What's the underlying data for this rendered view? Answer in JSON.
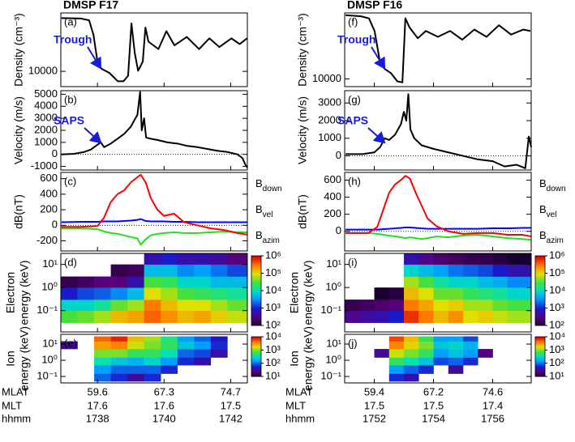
{
  "chart_data": [
    {
      "type": "line",
      "title": "DMSP F17",
      "panel_label": "(a)",
      "ylabel": "Density (cm⁻³)",
      "annotation": "Trough",
      "log_y": true,
      "xlim": [
        1736.9,
        1742.5
      ],
      "ylim": [
        7500,
        30000
      ],
      "yticks": [
        10000
      ],
      "color": "#000000",
      "x": [
        1736.92,
        1737.51,
        1737.75,
        1737.88,
        1738.0,
        1738.12,
        1738.36,
        1738.61,
        1738.78,
        1738.92,
        1739.02,
        1739.12,
        1739.22,
        1739.36,
        1739.44,
        1739.53,
        1739.83,
        1740.07,
        1740.31,
        1740.68,
        1741.05,
        1741.36,
        1741.66,
        1742.02,
        1742.27,
        1742.49
      ],
      "values": [
        27200,
        27000,
        26100,
        19900,
        12000,
        10500,
        9700,
        8300,
        8300,
        9200,
        24600,
        14100,
        10100,
        12000,
        22800,
        17500,
        15200,
        21300,
        16300,
        19100,
        15200,
        18600,
        15800,
        18600,
        16700,
        18600
      ]
    },
    {
      "type": "line",
      "panel_label": "(b)",
      "ylabel": "Velocity (m/s)",
      "annotation": "SAPS",
      "xlim": [
        1736.9,
        1742.5
      ],
      "ylim": [
        -1300,
        5300
      ],
      "yticks": [
        -1000,
        0,
        1000,
        2000,
        3000,
        4000,
        5000
      ],
      "color": "#000000",
      "x": [
        1736.92,
        1737.3,
        1737.6,
        1737.8,
        1738.0,
        1738.1,
        1738.2,
        1738.4,
        1738.6,
        1738.8,
        1739.0,
        1739.1,
        1739.2,
        1739.28,
        1739.33,
        1739.4,
        1739.46,
        1739.6,
        1739.8,
        1740.1,
        1740.4,
        1740.7,
        1741.0,
        1741.3,
        1741.6,
        1741.9,
        1742.2,
        1742.35,
        1742.45,
        1742.5
      ],
      "values": [
        0,
        50,
        200,
        400,
        800,
        1000,
        600,
        900,
        1300,
        1700,
        2300,
        2800,
        3300,
        5200,
        2000,
        3000,
        1400,
        1300,
        1200,
        1000,
        900,
        700,
        600,
        450,
        300,
        200,
        0,
        -300,
        -900,
        -1100
      ]
    },
    {
      "type": "line",
      "panel_label": "(c)",
      "ylabel": "dB(nT)",
      "legend": "right",
      "xlim": [
        1736.9,
        1742.5
      ],
      "ylim": [
        -330,
        680
      ],
      "yticks": [
        -200,
        0,
        200,
        400,
        600
      ],
      "x": [
        1736.92,
        1737.5,
        1738.0,
        1738.2,
        1738.4,
        1738.6,
        1738.8,
        1739.0,
        1739.2,
        1739.3,
        1739.45,
        1739.6,
        1739.8,
        1740.0,
        1740.3,
        1740.6,
        1741.0,
        1741.4,
        1741.8,
        1742.2,
        1742.5
      ],
      "series": [
        {
          "name": "Bdown",
          "color": "#0000ff",
          "values": [
            40,
            45,
            45,
            50,
            50,
            50,
            55,
            60,
            70,
            80,
            55,
            50,
            50,
            50,
            45,
            45,
            40,
            40,
            40,
            40,
            40
          ]
        },
        {
          "name": "Bvel",
          "color": "#22dd22",
          "values": [
            -40,
            -40,
            -50,
            -80,
            -100,
            -110,
            -130,
            -150,
            -170,
            -250,
            -180,
            -130,
            -110,
            -100,
            -90,
            -100,
            -100,
            -90,
            -80,
            -90,
            -90
          ]
        },
        {
          "name": "Bazim",
          "color": "#ff0000",
          "values": [
            -20,
            -20,
            -10,
            100,
            300,
            400,
            450,
            550,
            620,
            650,
            550,
            350,
            200,
            120,
            150,
            40,
            0,
            -40,
            -60,
            -100,
            -120
          ]
        }
      ]
    },
    {
      "type": "heatmap",
      "panel_label": "(d)",
      "ylabel": [
        "Electron",
        "energy (keV)"
      ],
      "log_y": true,
      "xlim": [
        1736.9,
        1742.5
      ],
      "ylim": [
        0.012,
        30
      ],
      "yticks": [
        {
          "value": 0.1,
          "label": "10⁻¹"
        },
        {
          "value": 1,
          "label": "10⁰"
        },
        {
          "value": 10,
          "label": "10¹"
        }
      ],
      "zlim": [
        2,
        6
      ],
      "zticks": [
        {
          "value": 2,
          "label": "10²"
        },
        {
          "value": 3,
          "label": "10³"
        },
        {
          "value": 4,
          "label": "10⁴"
        },
        {
          "value": 5,
          "label": "10⁵"
        },
        {
          "value": 6,
          "label": "10⁶"
        }
      ],
      "x_edges": [
        1736.9,
        1737.4,
        1737.9,
        1738.4,
        1738.9,
        1739.4,
        1739.9,
        1740.4,
        1740.9,
        1741.4,
        1741.9,
        1742.5
      ],
      "y_edges": [
        0.03,
        0.1,
        0.3,
        1,
        3,
        10,
        30
      ],
      "z": [
        [
          4.5,
          4.0,
          3.0,
          2.2,
          null,
          null
        ],
        [
          4.6,
          4.0,
          3.2,
          2.3,
          null,
          null
        ],
        [
          4.8,
          4.2,
          3.3,
          2.5,
          null,
          null
        ],
        [
          5.2,
          4.6,
          3.5,
          2.5,
          2.2,
          null
        ],
        [
          5.3,
          4.8,
          3.8,
          2.8,
          2.3,
          null
        ],
        [
          5.6,
          5.5,
          5.0,
          4.5,
          3.8,
          2.8
        ],
        [
          5.4,
          5.2,
          4.8,
          4.4,
          3.8,
          3.0
        ],
        [
          5.2,
          5.0,
          4.5,
          4.0,
          3.5,
          2.8
        ],
        [
          5.3,
          5.0,
          4.4,
          4.0,
          3.6,
          2.8
        ],
        [
          5.1,
          4.8,
          4.3,
          3.8,
          3.4,
          2.7
        ],
        [
          4.9,
          4.6,
          4.2,
          3.8,
          3.2,
          2.5
        ]
      ]
    },
    {
      "type": "heatmap",
      "panel_label": "(e)",
      "ylabel": [
        "Ion",
        "energy (keV)"
      ],
      "log_y": true,
      "xlim": [
        1736.9,
        1742.5
      ],
      "ylim": [
        0.04,
        40
      ],
      "yticks": [
        {
          "value": 0.1,
          "label": "10⁻¹"
        },
        {
          "value": 1,
          "label": "10⁰"
        },
        {
          "value": 10,
          "label": "10¹"
        }
      ],
      "zlim": [
        1,
        4
      ],
      "zticks": [
        {
          "value": 1,
          "label": "10¹"
        },
        {
          "value": 2,
          "label": "10²"
        },
        {
          "value": 3,
          "label": "10³"
        },
        {
          "value": 4,
          "label": "10⁴"
        }
      ],
      "x_edges": [
        1736.9,
        1737.4,
        1737.9,
        1738.4,
        1738.9,
        1739.4,
        1739.9,
        1740.4,
        1740.9,
        1741.4,
        1741.9,
        1742.5
      ],
      "y_edges": [
        0.05,
        0.15,
        0.5,
        1.5,
        5,
        15,
        30
      ],
      "z": [
        [
          null,
          null,
          null,
          null,
          1.5,
          null
        ],
        [
          null,
          null,
          null,
          null,
          null,
          null
        ],
        [
          2.0,
          2.2,
          2.6,
          3.0,
          3.5,
          3.7
        ],
        [
          1.8,
          2.0,
          2.4,
          3.0,
          3.6,
          3.9
        ],
        [
          1.5,
          2.0,
          2.3,
          2.8,
          3.2,
          3.4
        ],
        [
          1.8,
          2.0,
          2.5,
          2.8,
          3.0,
          3.1
        ],
        [
          null,
          1.8,
          2.2,
          2.6,
          2.8,
          2.7
        ],
        [
          null,
          null,
          1.8,
          2.0,
          2.4,
          2.2
        ],
        [
          null,
          null,
          1.6,
          1.9,
          2.2,
          2.0
        ],
        [
          null,
          null,
          null,
          1.6,
          1.8,
          1.7
        ],
        [
          null,
          null,
          null,
          null,
          null,
          null
        ]
      ],
      "xticks": [
        1738,
        1740,
        1742
      ],
      "xlabel": "hhmm",
      "x_rows": [
        {
          "name": "MLAT",
          "values": [
            59.6,
            67.3,
            74.7
          ]
        },
        {
          "name": "MLT",
          "values": [
            17.6,
            17.6,
            17.5
          ]
        }
      ]
    },
    {
      "type": "line",
      "title": "DMSP F16",
      "panel_label": "(f)",
      "ylabel": "Density (cm⁻³)",
      "annotation": "Trough",
      "log_y": true,
      "xlim": [
        1751,
        1757.3
      ],
      "ylim": [
        8500,
        40000
      ],
      "yticks": [
        10000
      ],
      "color": "#000000",
      "x": [
        1751.03,
        1751.55,
        1751.82,
        1752.01,
        1752.18,
        1752.34,
        1752.56,
        1752.78,
        1752.95,
        1753.05,
        1753.19,
        1753.47,
        1753.74,
        1754.15,
        1754.56,
        1754.97,
        1755.38,
        1755.79,
        1756.21,
        1756.62,
        1757.03,
        1757.27
      ],
      "values": [
        38200,
        37300,
        35700,
        27400,
        14900,
        12400,
        11300,
        9500,
        9300,
        35700,
        29500,
        23500,
        27400,
        24200,
        27400,
        22800,
        28200,
        24200,
        30900,
        25400,
        28200,
        27400
      ]
    },
    {
      "type": "line",
      "panel_label": "(g)",
      "ylabel": "Velocity (m/s)",
      "annotation": "SAPS",
      "xlim": [
        1751,
        1757.3
      ],
      "ylim": [
        -800,
        3700
      ],
      "yticks": [
        0,
        1000,
        2000,
        3000
      ],
      "color": "#000000",
      "x": [
        1751.03,
        1751.6,
        1752.0,
        1752.2,
        1752.35,
        1752.5,
        1752.7,
        1752.9,
        1753.0,
        1753.08,
        1753.15,
        1753.22,
        1753.35,
        1753.6,
        1754.0,
        1754.5,
        1755.0,
        1755.5,
        1756.0,
        1756.4,
        1756.8,
        1757.1,
        1757.22,
        1757.3
      ],
      "values": [
        100,
        100,
        200,
        500,
        1000,
        900,
        1200,
        1800,
        2500,
        2000,
        3500,
        1500,
        1000,
        600,
        400,
        200,
        0,
        -200,
        -300,
        -600,
        -500,
        -700,
        1100,
        500
      ]
    },
    {
      "type": "line",
      "panel_label": "(h)",
      "ylabel": "dB(nT)",
      "legend": "right",
      "xlim": [
        1751,
        1757.3
      ],
      "ylim": [
        -230,
        690
      ],
      "yticks": [
        0,
        200,
        400,
        600
      ],
      "x": [
        1751.03,
        1751.8,
        1752.1,
        1752.3,
        1752.5,
        1752.7,
        1752.9,
        1753.05,
        1753.2,
        1753.4,
        1753.6,
        1753.8,
        1754.1,
        1754.5,
        1755.0,
        1755.5,
        1756.0,
        1756.5,
        1757.0,
        1757.3
      ],
      "series": [
        {
          "name": "Bdown",
          "color": "#0000ff",
          "values": [
            20,
            20,
            20,
            25,
            30,
            35,
            40,
            45,
            45,
            40,
            35,
            30,
            30,
            30,
            30,
            30,
            35,
            35,
            40,
            40
          ]
        },
        {
          "name": "Bvel",
          "color": "#22dd22",
          "values": [
            -20,
            -20,
            -30,
            -40,
            -50,
            -60,
            -70,
            -80,
            -70,
            -80,
            -90,
            -80,
            -60,
            -70,
            -50,
            -40,
            -60,
            -80,
            -90,
            -100
          ]
        },
        {
          "name": "Bazim",
          "color": "#ff0000",
          "values": [
            -20,
            -20,
            50,
            250,
            450,
            550,
            600,
            650,
            620,
            450,
            300,
            150,
            60,
            0,
            -30,
            -20,
            -20,
            -40,
            -40,
            -60
          ]
        }
      ]
    },
    {
      "type": "heatmap",
      "panel_label": "(i)",
      "ylabel": [
        "Electron",
        "energy (keV)"
      ],
      "log_y": true,
      "xlim": [
        1751,
        1757.3
      ],
      "ylim": [
        0.012,
        30
      ],
      "yticks": [
        {
          "value": 0.1,
          "label": "10⁻¹"
        },
        {
          "value": 1,
          "label": "10⁰"
        },
        {
          "value": 10,
          "label": "10¹"
        }
      ],
      "zlim": [
        2,
        6
      ],
      "zticks": [
        {
          "value": 2,
          "label": "10²"
        },
        {
          "value": 3,
          "label": "10³"
        },
        {
          "value": 4,
          "label": "10⁴"
        },
        {
          "value": 5,
          "label": "10⁵"
        },
        {
          "value": 6,
          "label": "10⁶"
        }
      ],
      "x_edges": [
        1751.0,
        1751.5,
        1752.0,
        1752.5,
        1753.0,
        1753.5,
        1754.0,
        1754.5,
        1755.0,
        1755.5,
        1756.0,
        1756.5,
        1757.3
      ],
      "y_edges": [
        0.03,
        0.1,
        0.3,
        1,
        3,
        10,
        30
      ],
      "z": [
        [
          2.6,
          2.2,
          null,
          null,
          null,
          null
        ],
        [
          2.7,
          2.3,
          null,
          null,
          null,
          null
        ],
        [
          2.8,
          2.4,
          2.0,
          null,
          null,
          null
        ],
        [
          3.0,
          2.5,
          2.1,
          null,
          null,
          null
        ],
        [
          5.8,
          5.5,
          5.2,
          4.8,
          4.0,
          2.8
        ],
        [
          5.5,
          5.3,
          5.0,
          4.5,
          3.8,
          2.6
        ],
        [
          5.2,
          5.0,
          4.6,
          4.2,
          3.6,
          2.4
        ],
        [
          5.4,
          5.1,
          4.6,
          4.0,
          3.4,
          2.3
        ],
        [
          5.0,
          4.8,
          4.4,
          4.0,
          3.3,
          2.2
        ],
        [
          5.1,
          4.8,
          4.3,
          3.8,
          3.2,
          2.2
        ],
        [
          4.9,
          4.6,
          4.2,
          3.7,
          3.0,
          2.1
        ],
        [
          4.8,
          4.5,
          4.0,
          3.5,
          2.8,
          2.0
        ]
      ]
    },
    {
      "type": "heatmap",
      "panel_label": "(j)",
      "ylabel": [
        "Ion",
        "energy (keV)"
      ],
      "log_y": true,
      "xlim": [
        1751,
        1757.3
      ],
      "ylim": [
        0.04,
        40
      ],
      "yticks": [
        {
          "value": 0.1,
          "label": "10⁻¹"
        },
        {
          "value": 1,
          "label": "10⁰"
        },
        {
          "value": 10,
          "label": "10¹"
        }
      ],
      "zlim": [
        1,
        4
      ],
      "zticks": [
        {
          "value": 1,
          "label": "10¹"
        },
        {
          "value": 2,
          "label": "10²"
        },
        {
          "value": 3,
          "label": "10³"
        },
        {
          "value": 4,
          "label": "10⁴"
        }
      ],
      "x_edges": [
        1751.0,
        1751.5,
        1752.0,
        1752.5,
        1753.0,
        1753.5,
        1754.0,
        1754.5,
        1755.0,
        1755.5,
        1756.0,
        1756.5,
        1757.3
      ],
      "y_edges": [
        0.05,
        0.15,
        0.5,
        1.5,
        5,
        15,
        30
      ],
      "z": [
        [
          null,
          null,
          null,
          null,
          null,
          null
        ],
        [
          null,
          null,
          null,
          null,
          null,
          null
        ],
        [
          null,
          null,
          null,
          1.5,
          null,
          null
        ],
        [
          1.8,
          2.2,
          2.8,
          3.2,
          3.6,
          3.8
        ],
        [
          1.6,
          2.0,
          2.6,
          3.0,
          3.3,
          3.4
        ],
        [
          null,
          1.8,
          2.4,
          2.8,
          3.0,
          2.8
        ],
        [
          null,
          null,
          1.9,
          2.2,
          2.4,
          2.2
        ],
        [
          null,
          1.5,
          2.0,
          2.4,
          2.5,
          2.2
        ],
        [
          null,
          null,
          1.8,
          2.2,
          2.3,
          1.9
        ],
        [
          null,
          null,
          null,
          1.4,
          null,
          null
        ],
        [
          null,
          null,
          null,
          null,
          null,
          null
        ],
        [
          null,
          null,
          null,
          null,
          null,
          null
        ]
      ],
      "xticks": [
        1752,
        1754,
        1756
      ],
      "xlabel": "hhmm",
      "x_rows": [
        {
          "name": "MLAT",
          "values": [
            59.4,
            67.2,
            74.6
          ]
        },
        {
          "name": "MLT",
          "values": [
            17.5,
            17.5,
            17.4
          ]
        }
      ]
    }
  ]
}
